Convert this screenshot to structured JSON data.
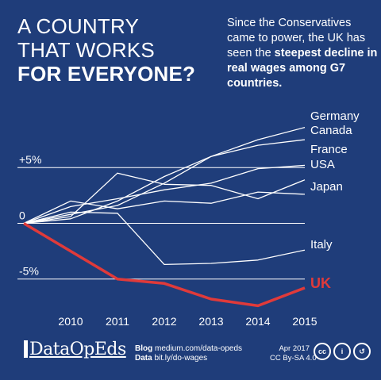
{
  "headline": {
    "line1": "A COUNTRY",
    "line2": "THAT WORKS",
    "line3": "FOR EVERYONE?"
  },
  "subtext": {
    "part1": "Since the Conservatives came to power, the UK has seen the ",
    "bold1": "steepest decline in real wages",
    "part2": " among G7 countries",
    "bold2": "."
  },
  "chart_data": {
    "type": "line",
    "x": [
      2009,
      2010,
      2011,
      2012,
      2013,
      2014,
      2015
    ],
    "xticks": [
      "2010",
      "2011",
      "2012",
      "2013",
      "2014",
      "2015"
    ],
    "yticks": [
      {
        "value": 5,
        "label": "+5%"
      },
      {
        "value": 0,
        "label": "0"
      },
      {
        "value": -5,
        "label": "-5%"
      }
    ],
    "ylim": [
      -7.3,
      9.5
    ],
    "series": [
      {
        "name": "Germany",
        "values": [
          0,
          0.4,
          2.0,
          4.2,
          6.0,
          7.5,
          8.6
        ]
      },
      {
        "name": "Canada",
        "values": [
          0,
          0.8,
          1.6,
          3.6,
          6.0,
          7.0,
          7.5
        ]
      },
      {
        "name": "France",
        "values": [
          0,
          1.5,
          2.2,
          3.0,
          3.6,
          4.9,
          5.2
        ]
      },
      {
        "name": "USA",
        "values": [
          0,
          0.6,
          4.5,
          3.5,
          3.4,
          2.2,
          3.9
        ]
      },
      {
        "name": "Japan",
        "values": [
          0,
          2.0,
          1.3,
          2.0,
          1.8,
          2.8,
          2.6
        ]
      },
      {
        "name": "Italy",
        "values": [
          0,
          1.0,
          0.9,
          -3.7,
          -3.6,
          -3.3,
          -2.4
        ]
      },
      {
        "name": "UK",
        "values": [
          0,
          -2.5,
          -5.0,
          -5.4,
          -6.8,
          -7.4,
          -5.8
        ],
        "highlight": true
      }
    ]
  },
  "footer": {
    "logo": "DataOpEds",
    "blog_label": "Blog",
    "blog_url": "medium.com/data-opeds",
    "data_label": "Data",
    "data_url": "bit.ly/do-wages",
    "date": "Apr 2017",
    "license": "CC By-SA 4.0",
    "cc_icons": [
      "cc",
      "i",
      "↺"
    ]
  },
  "colors": {
    "background": "#1f3d7a",
    "line": "#ffffff",
    "uk": "#e03a3a",
    "grid": "#ffffff"
  }
}
